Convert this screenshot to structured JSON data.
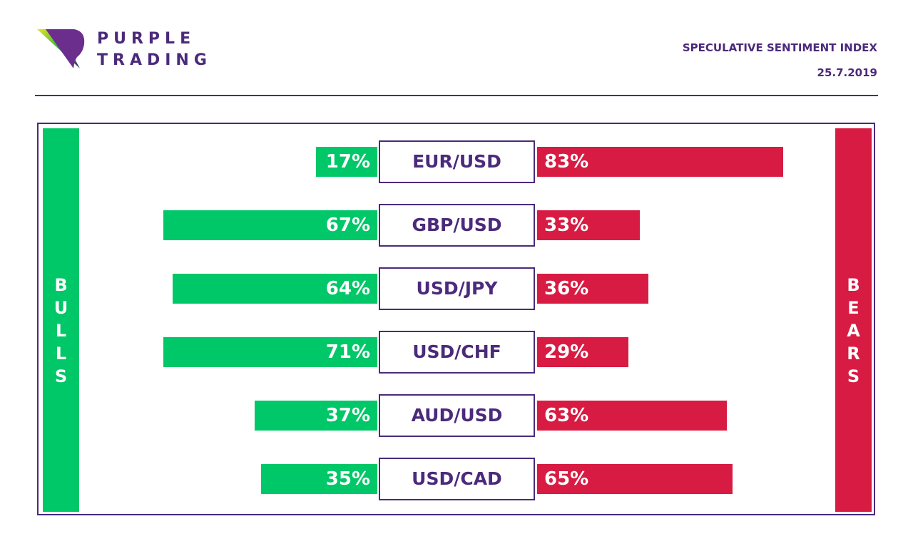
{
  "header": {
    "brand_line1": "PURPLE",
    "brand_line2": "TRADING",
    "title": "SPECULATIVE SENTIMENT INDEX",
    "date": "25.7.2019"
  },
  "colors": {
    "brand": "#4b2a7b",
    "bulls": "#00c767",
    "bears": "#d81b42"
  },
  "chart_data": {
    "type": "bar",
    "title": "SPECULATIVE SENTIMENT INDEX",
    "subtitle": "25.7.2019",
    "left_label": "BULLS",
    "right_label": "BEARS",
    "categories": [
      "EUR/USD",
      "GBP/USD",
      "USD/JPY",
      "USD/CHF",
      "AUD/USD",
      "USD/CAD"
    ],
    "series": [
      {
        "name": "Bulls",
        "values": [
          17,
          67,
          64,
          71,
          37,
          35
        ],
        "labels": [
          "17%",
          "67%",
          "64%",
          "71%",
          "37%",
          "35%"
        ]
      },
      {
        "name": "Bears",
        "values": [
          83,
          33,
          36,
          29,
          63,
          65
        ],
        "labels": [
          "83%",
          "33%",
          "36%",
          "29%",
          "63%",
          "65%"
        ]
      }
    ],
    "ylim": [
      0,
      100
    ]
  }
}
